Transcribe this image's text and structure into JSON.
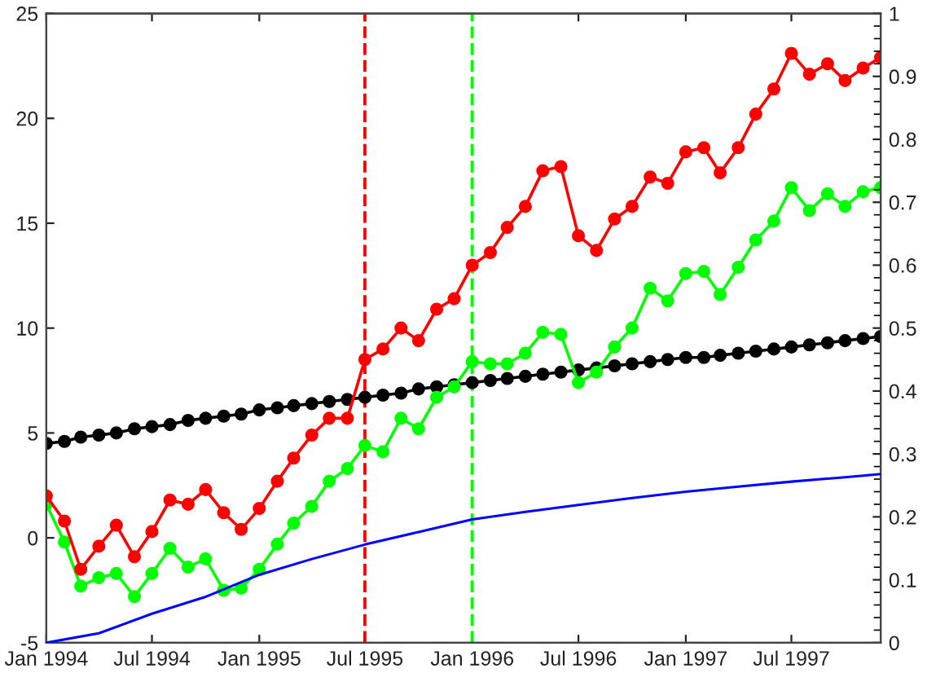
{
  "chart_data": {
    "type": "line",
    "x": [
      "1994-01",
      "1994-02",
      "1994-03",
      "1994-04",
      "1994-05",
      "1994-06",
      "1994-07",
      "1994-08",
      "1994-09",
      "1994-10",
      "1994-11",
      "1994-12",
      "1995-01",
      "1995-02",
      "1995-03",
      "1995-04",
      "1995-05",
      "1995-06",
      "1995-07",
      "1995-08",
      "1995-09",
      "1995-10",
      "1995-11",
      "1995-12",
      "1996-01",
      "1996-02",
      "1996-03",
      "1996-04",
      "1996-05",
      "1996-06",
      "1996-07",
      "1996-08",
      "1996-09",
      "1996-10",
      "1996-11",
      "1996-12",
      "1997-01",
      "1997-02",
      "1997-03",
      "1997-04",
      "1997-05",
      "1997-06",
      "1997-07",
      "1997-08",
      "1997-09",
      "1997-10",
      "1997-11",
      "1997-12"
    ],
    "series": [
      {
        "color": "#ff0000",
        "marker": "circle",
        "values": [
          2.0,
          0.8,
          -1.5,
          -0.4,
          0.6,
          -0.9,
          0.3,
          1.8,
          1.6,
          2.3,
          1.2,
          0.4,
          1.4,
          2.7,
          3.8,
          4.9,
          5.7,
          5.7,
          8.5,
          9.0,
          10.0,
          9.4,
          10.9,
          11.4,
          13.0,
          13.6,
          14.8,
          15.8,
          17.5,
          17.7,
          14.4,
          13.7,
          15.2,
          15.8,
          17.2,
          16.9,
          18.4,
          18.6,
          17.4,
          18.6,
          20.2,
          21.4,
          23.1,
          22.1,
          22.6,
          21.8,
          22.4,
          22.9
        ]
      },
      {
        "color": "#00ff00",
        "marker": "circle",
        "values": [
          1.6,
          -0.2,
          -2.3,
          -1.9,
          -1.7,
          -2.8,
          -1.7,
          -0.5,
          -1.4,
          -1.0,
          -2.5,
          -2.4,
          -1.5,
          -0.3,
          0.7,
          1.5,
          2.7,
          3.3,
          4.4,
          4.1,
          5.7,
          5.2,
          6.7,
          7.2,
          8.4,
          8.3,
          8.3,
          8.8,
          9.8,
          9.7,
          7.4,
          7.9,
          9.1,
          10.0,
          11.9,
          11.3,
          12.6,
          12.7,
          11.6,
          12.9,
          14.2,
          15.1,
          16.7,
          15.6,
          16.4,
          15.8,
          16.5,
          16.7
        ]
      },
      {
        "color": "#000000",
        "marker": "circle",
        "values": [
          4.5,
          4.6,
          4.8,
          4.9,
          5.0,
          5.2,
          5.3,
          5.4,
          5.6,
          5.7,
          5.8,
          5.9,
          6.1,
          6.2,
          6.3,
          6.4,
          6.5,
          6.6,
          6.7,
          6.8,
          6.9,
          7.1,
          7.2,
          7.3,
          7.4,
          7.5,
          7.6,
          7.7,
          7.8,
          7.9,
          8.0,
          8.1,
          8.2,
          8.3,
          8.4,
          8.5,
          8.6,
          8.6,
          8.7,
          8.8,
          8.9,
          9.0,
          9.1,
          9.2,
          9.3,
          9.4,
          9.5,
          9.6
        ]
      },
      {
        "color": "#0000ff",
        "marker": "none",
        "axis": "y2",
        "x": [
          "1994-01",
          "1994-04",
          "1994-07",
          "1994-10",
          "1995-01",
          "1995-04",
          "1995-07",
          "1995-10",
          "1996-01",
          "1996-04",
          "1996-07",
          "1996-10",
          "1997-01",
          "1997-04",
          "1997-07",
          "1997-10",
          "1997-12"
        ],
        "values": [
          0,
          0.015,
          0.046,
          0.073,
          0.108,
          0.133,
          0.156,
          0.176,
          0.196,
          0.208,
          0.219,
          0.23,
          0.24,
          0.248,
          0.256,
          0.263,
          0.268
        ]
      }
    ],
    "xlim": [
      "1994-01",
      "1997-12"
    ],
    "xticks": [
      {
        "value": "1994-01",
        "label": "Jan 1994"
      },
      {
        "value": "1994-07",
        "label": "Jul 1994"
      },
      {
        "value": "1995-01",
        "label": "Jan 1995"
      },
      {
        "value": "1995-07",
        "label": "Jul 1995"
      },
      {
        "value": "1996-01",
        "label": "Jan 1996"
      },
      {
        "value": "1996-07",
        "label": "Jul 1996"
      },
      {
        "value": "1997-01",
        "label": "Jan 1997"
      },
      {
        "value": "1997-07",
        "label": "Jul 1997"
      }
    ],
    "ylim": [
      -5,
      25
    ],
    "yticks": [
      -5,
      0,
      5,
      10,
      15,
      20,
      25
    ],
    "y2lim": [
      0,
      1
    ],
    "y2ticks": [
      0,
      0.1,
      0.2,
      0.3,
      0.4,
      0.5,
      0.6,
      0.7,
      0.8,
      0.9,
      1
    ],
    "ref_lines": [
      {
        "axis": "x",
        "value": "1995-07",
        "color": "#ff0000",
        "line_style": "dashed"
      },
      {
        "axis": "x",
        "value": "1996-01",
        "color": "#00ff00",
        "line_style": "dashed"
      }
    ],
    "grid": false,
    "legend": false
  }
}
